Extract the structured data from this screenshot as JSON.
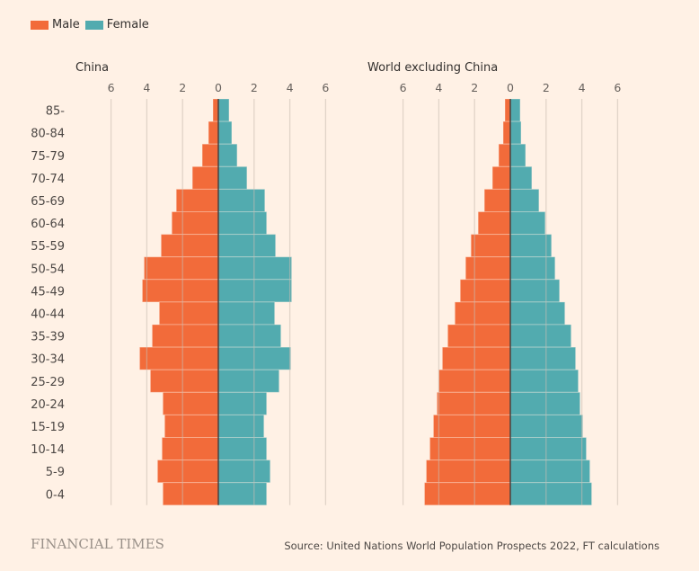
{
  "legend": [
    {
      "label": "Male",
      "color": "#F26B3A"
    },
    {
      "label": "Female",
      "color": "#52ABAF"
    }
  ],
  "footer": {
    "logo": "FINANCIAL TIMES",
    "source": "Source: United Nations World Population Prospects 2022, FT calculations"
  },
  "chart_data": [
    {
      "type": "bar",
      "subtype": "population-pyramid",
      "title": "China",
      "xlabel": "",
      "ylabel": "",
      "xlim": [
        -6,
        6
      ],
      "x_ticks": [
        6,
        4,
        2,
        0,
        2,
        4,
        6
      ],
      "grid": true,
      "categories": [
        "85-",
        "80-84",
        "75-79",
        "70-74",
        "65-69",
        "60-64",
        "55-59",
        "50-54",
        "45-49",
        "40-44",
        "35-39",
        "30-34",
        "25-29",
        "20-24",
        "15-19",
        "10-14",
        "5-9",
        "0-4"
      ],
      "series": [
        {
          "name": "Male",
          "color": "#F26B3A",
          "values": [
            0.3,
            0.55,
            0.9,
            1.45,
            2.35,
            2.6,
            3.2,
            4.15,
            4.25,
            3.3,
            3.7,
            4.4,
            3.8,
            3.1,
            3.0,
            3.15,
            3.4,
            3.1
          ]
        },
        {
          "name": "Female",
          "color": "#52ABAF",
          "values": [
            0.6,
            0.75,
            1.05,
            1.6,
            2.6,
            2.7,
            3.2,
            4.1,
            4.1,
            3.15,
            3.5,
            4.05,
            3.4,
            2.7,
            2.55,
            2.7,
            2.9,
            2.7
          ]
        }
      ]
    },
    {
      "type": "bar",
      "subtype": "population-pyramid",
      "title": "World excluding China",
      "xlabel": "",
      "ylabel": "",
      "xlim": [
        -6,
        6
      ],
      "x_ticks": [
        6,
        4,
        2,
        0,
        2,
        4,
        6
      ],
      "grid": true,
      "categories": [
        "85-",
        "80-84",
        "75-79",
        "70-74",
        "65-69",
        "60-64",
        "55-59",
        "50-54",
        "45-49",
        "40-44",
        "35-39",
        "30-34",
        "25-29",
        "20-24",
        "15-19",
        "10-14",
        "5-9",
        "0-4"
      ],
      "series": [
        {
          "name": "Male",
          "color": "#F26B3A",
          "values": [
            0.3,
            0.4,
            0.65,
            1.0,
            1.45,
            1.8,
            2.2,
            2.5,
            2.8,
            3.1,
            3.5,
            3.8,
            4.0,
            4.1,
            4.3,
            4.5,
            4.7,
            4.8
          ]
        },
        {
          "name": "Female",
          "color": "#52ABAF",
          "values": [
            0.55,
            0.6,
            0.85,
            1.2,
            1.6,
            1.95,
            2.3,
            2.5,
            2.75,
            3.05,
            3.4,
            3.65,
            3.8,
            3.9,
            4.05,
            4.25,
            4.45,
            4.55
          ]
        }
      ]
    }
  ]
}
